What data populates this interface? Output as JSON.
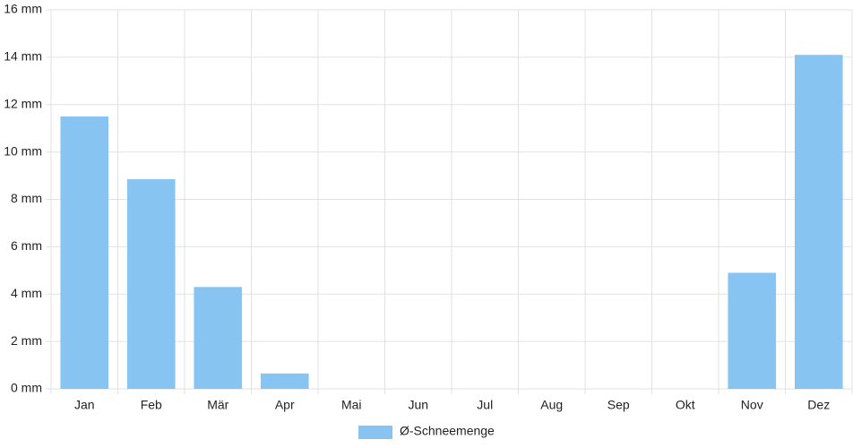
{
  "chart_data": {
    "type": "bar",
    "categories": [
      "Jan",
      "Feb",
      "Mär",
      "Apr",
      "Mai",
      "Jun",
      "Jul",
      "Aug",
      "Sep",
      "Okt",
      "Nov",
      "Dez"
    ],
    "series": [
      {
        "name": "Ø-Schneemenge",
        "color": "#88c4f2",
        "values": [
          11.5,
          8.85,
          4.3,
          0.65,
          0,
          0,
          0,
          0,
          0,
          0,
          4.9,
          14.1
        ]
      }
    ],
    "ylim": [
      0,
      16
    ],
    "yticks": [
      {
        "value": 0,
        "label": "0 mm"
      },
      {
        "value": 2,
        "label": "2 mm"
      },
      {
        "value": 4,
        "label": "4 mm"
      },
      {
        "value": 6,
        "label": "6 mm"
      },
      {
        "value": 8,
        "label": "8 mm"
      },
      {
        "value": 10,
        "label": "10 mm"
      },
      {
        "value": 12,
        "label": "12 mm"
      },
      {
        "value": 14,
        "label": "14 mm"
      },
      {
        "value": 16,
        "label": "16 mm"
      }
    ],
    "grid": true,
    "legend": "bottom"
  }
}
